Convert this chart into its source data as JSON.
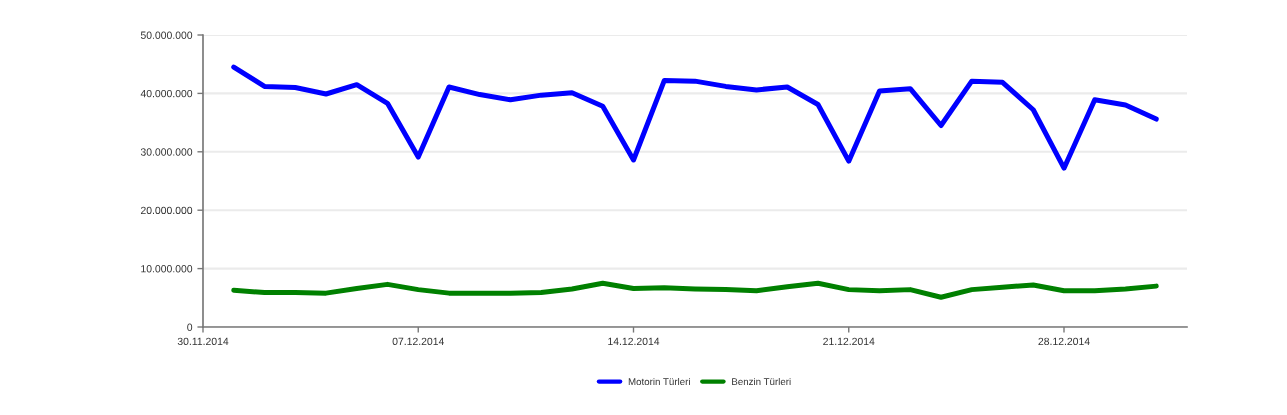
{
  "chart_data": {
    "type": "line",
    "x": [
      "2014-12-01",
      "2014-12-02",
      "2014-12-03",
      "2014-12-04",
      "2014-12-05",
      "2014-12-06",
      "2014-12-07",
      "2014-12-08",
      "2014-12-09",
      "2014-12-10",
      "2014-12-11",
      "2014-12-12",
      "2014-12-13",
      "2014-12-14",
      "2014-12-15",
      "2014-12-16",
      "2014-12-17",
      "2014-12-18",
      "2014-12-19",
      "2014-12-20",
      "2014-12-21",
      "2014-12-22",
      "2014-12-23",
      "2014-12-24",
      "2014-12-25",
      "2014-12-26",
      "2014-12-27",
      "2014-12-28",
      "2014-12-29",
      "2014-12-30",
      "2014-12-31"
    ],
    "series": [
      {
        "name": "Motorin Türleri",
        "color": "#0000ff",
        "values": [
          44500000,
          41200000,
          41000000,
          39900000,
          41500000,
          38300000,
          29100000,
          41100000,
          39800000,
          38900000,
          39700000,
          40100000,
          37800000,
          28600000,
          42200000,
          42100000,
          41200000,
          40600000,
          41100000,
          38100000,
          28400000,
          40400000,
          40800000,
          34500000,
          42100000,
          41900000,
          37200000,
          27200000,
          38900000,
          38000000,
          35600000
        ]
      },
      {
        "name": "Benzin Türleri",
        "color": "#008000",
        "values": [
          6300000,
          5900000,
          5900000,
          5800000,
          6600000,
          7300000,
          6400000,
          5800000,
          5800000,
          5800000,
          5900000,
          6500000,
          7500000,
          6600000,
          6700000,
          6500000,
          6400000,
          6200000,
          6900000,
          7500000,
          6400000,
          6200000,
          6400000,
          5100000,
          6400000,
          6800000,
          7200000,
          6200000,
          6200000,
          6500000,
          7000000
        ]
      }
    ],
    "xlim": [
      "2014-11-30",
      "2015-01-01"
    ],
    "xticks": [
      {
        "value": "2014-11-30",
        "label": "30.11.2014"
      },
      {
        "value": "2014-12-07",
        "label": "07.12.2014"
      },
      {
        "value": "2014-12-14",
        "label": "14.12.2014"
      },
      {
        "value": "2014-12-21",
        "label": "21.12.2014"
      },
      {
        "value": "2014-12-28",
        "label": "28.12.2014"
      }
    ],
    "ylim": [
      0,
      50000000
    ],
    "yticks": [
      0,
      {
        "value": 10000000,
        "label": "10.000.000"
      },
      {
        "value": 20000000,
        "label": "20.000.000"
      },
      {
        "value": 30000000,
        "label": "30.000.000"
      },
      {
        "value": 40000000,
        "label": "40.000.000"
      },
      {
        "value": 50000000,
        "label": "50.000.000"
      }
    ],
    "grid": "y",
    "legend": "bottom",
    "line_style": "solid",
    "marker": "none"
  }
}
